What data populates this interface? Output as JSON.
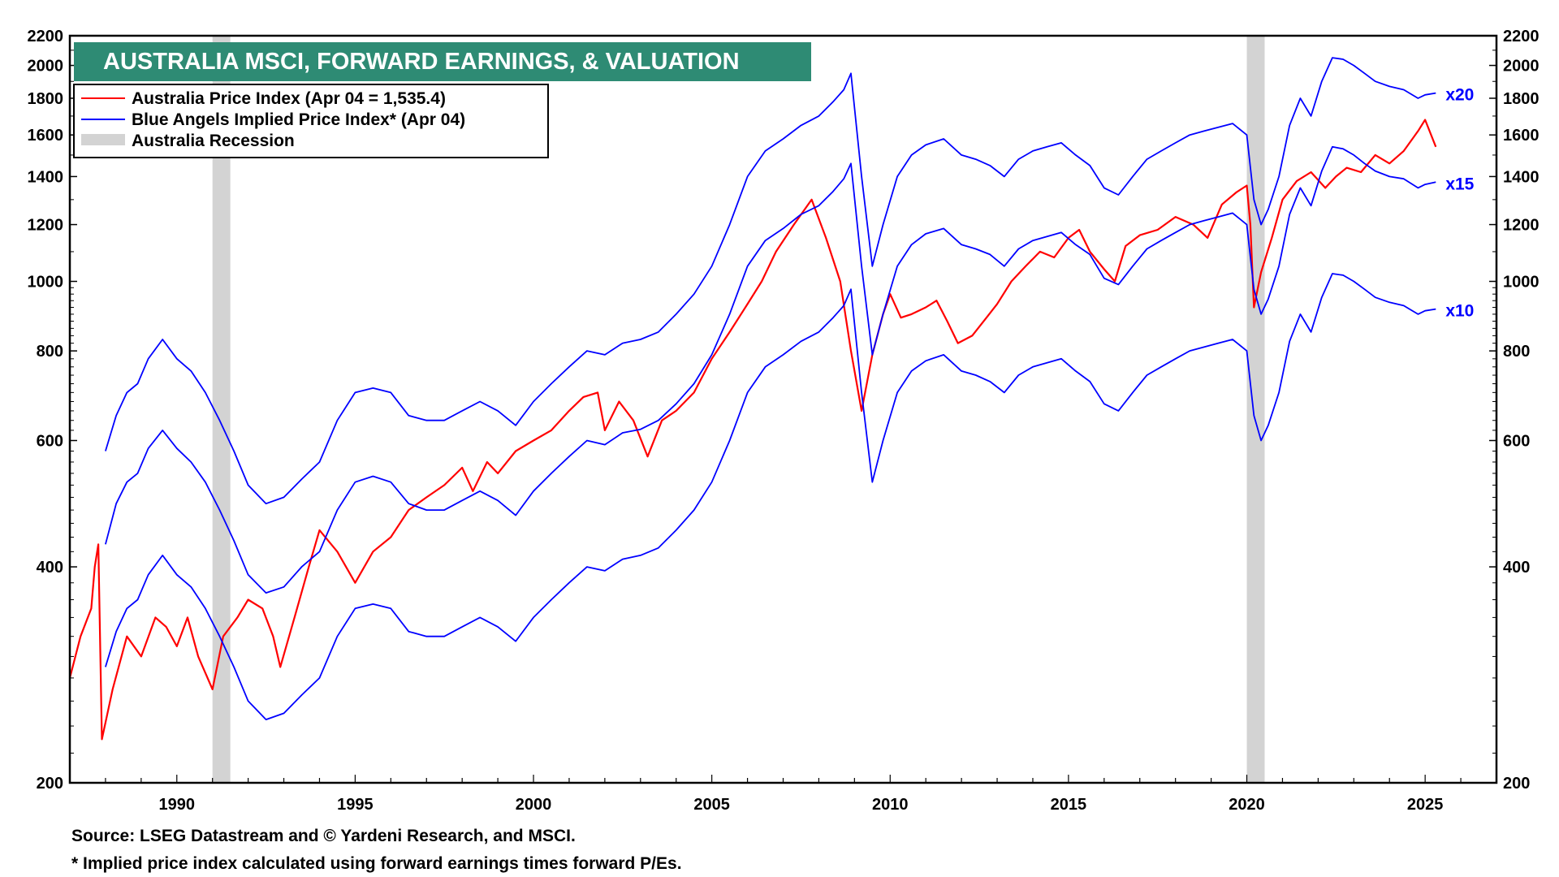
{
  "colors": {
    "price": "#ff0000",
    "implied": "#0000ff",
    "recession": "#d3d3d3",
    "title_bg": "#2e8b74"
  },
  "chart_data": {
    "type": "line",
    "title": "AUSTRALIA MSCI, FORWARD EARNINGS, & VALUATION",
    "y_scale": "log",
    "ylim": [
      200,
      2200
    ],
    "xlim": [
      1987.0,
      2027.0
    ],
    "y_ticks": [
      "200",
      "400",
      "600",
      "800",
      "1000",
      "1200",
      "1400",
      "1600",
      "1800",
      "2000",
      "2200"
    ],
    "y_tick_values": [
      200,
      400,
      600,
      800,
      1000,
      1200,
      1400,
      1600,
      1800,
      2000,
      2200
    ],
    "x_ticks": [
      "1990",
      "1995",
      "2000",
      "2005",
      "2010",
      "2015",
      "2020",
      "2025"
    ],
    "x_tick_values": [
      1990,
      1995,
      2000,
      2005,
      2010,
      2015,
      2020,
      2025
    ],
    "legend": [
      {
        "label": "Australia Price Index (Apr 04 = 1,535.4)",
        "kind": "line",
        "color": "#ff0000"
      },
      {
        "label": "Blue Angels Implied Price Index* (Apr 04)",
        "kind": "line",
        "color": "#0000ff"
      },
      {
        "label": "Australia Recession",
        "kind": "band",
        "color": "#d3d3d3"
      }
    ],
    "recessions": [
      [
        1991.0,
        1991.5
      ],
      [
        2020.0,
        2020.5
      ]
    ],
    "multiple_labels": [
      "x20",
      "x15",
      "x10"
    ],
    "series": [
      {
        "name": "Australia Price Index",
        "color": "#ff0000",
        "x": [
          1987.0,
          1987.3,
          1987.6,
          1987.7,
          1987.8,
          1987.9,
          1988.2,
          1988.6,
          1989.0,
          1989.4,
          1989.7,
          1990.0,
          1990.3,
          1990.6,
          1991.0,
          1991.3,
          1991.7,
          1992.0,
          1992.4,
          1992.7,
          1992.9,
          1993.3,
          1993.7,
          1994.0,
          1994.5,
          1995.0,
          1995.5,
          1996.0,
          1996.5,
          1997.0,
          1997.5,
          1998.0,
          1998.3,
          1998.7,
          1999.0,
          1999.5,
          2000.0,
          2000.5,
          2001.0,
          2001.4,
          2001.8,
          2002.0,
          2002.4,
          2002.8,
          2003.2,
          2003.6,
          2004.0,
          2004.5,
          2005.0,
          2005.5,
          2006.0,
          2006.4,
          2006.8,
          2007.3,
          2007.8,
          2008.2,
          2008.6,
          2008.9,
          2009.2,
          2009.5,
          2009.8,
          2010.0,
          2010.3,
          2010.6,
          2011.0,
          2011.3,
          2011.6,
          2011.9,
          2012.3,
          2012.7,
          2013.0,
          2013.4,
          2013.8,
          2014.2,
          2014.6,
          2015.0,
          2015.3,
          2015.6,
          2016.0,
          2016.3,
          2016.6,
          2017.0,
          2017.5,
          2018.0,
          2018.5,
          2018.9,
          2019.3,
          2019.7,
          2020.0,
          2020.1,
          2020.2,
          2020.4,
          2020.7,
          2021.0,
          2021.4,
          2021.8,
          2022.2,
          2022.5,
          2022.8,
          2023.2,
          2023.6,
          2024.0,
          2024.4,
          2024.8,
          2025.0,
          2025.3
        ],
        "values": [
          280,
          320,
          350,
          400,
          430,
          230,
          270,
          320,
          300,
          340,
          330,
          310,
          340,
          300,
          270,
          320,
          340,
          360,
          350,
          320,
          290,
          340,
          400,
          450,
          420,
          380,
          420,
          440,
          480,
          500,
          520,
          550,
          510,
          560,
          540,
          580,
          600,
          620,
          660,
          690,
          700,
          620,
          680,
          640,
          570,
          640,
          660,
          700,
          780,
          850,
          930,
          1000,
          1100,
          1200,
          1300,
          1150,
          1000,
          800,
          660,
          790,
          900,
          960,
          890,
          900,
          920,
          940,
          880,
          820,
          840,
          890,
          930,
          1000,
          1050,
          1100,
          1080,
          1150,
          1180,
          1100,
          1040,
          1000,
          1120,
          1160,
          1180,
          1230,
          1200,
          1150,
          1280,
          1330,
          1360,
          1200,
          920,
          1030,
          1150,
          1300,
          1380,
          1420,
          1350,
          1400,
          1440,
          1420,
          1500,
          1460,
          1520,
          1620,
          1680,
          1540
        ]
      },
      {
        "name": "Implied x20",
        "color": "#0000ff",
        "x": [
          1988.0,
          1988.3,
          1988.6,
          1988.9,
          1989.2,
          1989.6,
          1990.0,
          1990.4,
          1990.8,
          1991.2,
          1991.6,
          1992.0,
          1992.5,
          1993.0,
          1993.5,
          1994.0,
          1994.5,
          1995.0,
          1995.5,
          1996.0,
          1996.5,
          1997.0,
          1997.5,
          1998.0,
          1998.5,
          1999.0,
          1999.5,
          2000.0,
          2000.5,
          2001.0,
          2001.5,
          2002.0,
          2002.5,
          2003.0,
          2003.5,
          2004.0,
          2004.5,
          2005.0,
          2005.5,
          2006.0,
          2006.5,
          2007.0,
          2007.5,
          2008.0,
          2008.4,
          2008.7,
          2008.9,
          2009.2,
          2009.5,
          2009.8,
          2010.2,
          2010.6,
          2011.0,
          2011.5,
          2012.0,
          2012.4,
          2012.8,
          2013.2,
          2013.6,
          2014.0,
          2014.4,
          2014.8,
          2015.2,
          2015.6,
          2016.0,
          2016.4,
          2016.8,
          2017.2,
          2017.6,
          2018.0,
          2018.4,
          2018.8,
          2019.2,
          2019.6,
          2020.0,
          2020.2,
          2020.4,
          2020.6,
          2020.9,
          2021.2,
          2021.5,
          2021.8,
          2022.1,
          2022.4,
          2022.7,
          2023.0,
          2023.3,
          2023.6,
          2024.0,
          2024.4,
          2024.8,
          2025.0,
          2025.3
        ],
        "values": [
          580,
          650,
          700,
          720,
          780,
          830,
          780,
          750,
          700,
          640,
          580,
          520,
          490,
          500,
          530,
          560,
          640,
          700,
          710,
          700,
          650,
          640,
          640,
          660,
          680,
          660,
          630,
          680,
          720,
          760,
          800,
          790,
          820,
          830,
          850,
          900,
          960,
          1050,
          1200,
          1400,
          1520,
          1580,
          1650,
          1700,
          1780,
          1850,
          1950,
          1400,
          1050,
          1200,
          1400,
          1500,
          1550,
          1580,
          1500,
          1480,
          1450,
          1400,
          1480,
          1520,
          1540,
          1560,
          1500,
          1450,
          1350,
          1320,
          1400,
          1480,
          1520,
          1560,
          1600,
          1620,
          1640,
          1660,
          1600,
          1300,
          1200,
          1260,
          1400,
          1650,
          1800,
          1700,
          1900,
          2050,
          2040,
          2000,
          1950,
          1900,
          1870,
          1850,
          1800,
          1820,
          1830
        ]
      },
      {
        "name": "Implied x15",
        "color": "#0000ff",
        "x": [
          1988.0,
          1988.3,
          1988.6,
          1988.9,
          1989.2,
          1989.6,
          1990.0,
          1990.4,
          1990.8,
          1991.2,
          1991.6,
          1992.0,
          1992.5,
          1993.0,
          1993.5,
          1994.0,
          1994.5,
          1995.0,
          1995.5,
          1996.0,
          1996.5,
          1997.0,
          1997.5,
          1998.0,
          1998.5,
          1999.0,
          1999.5,
          2000.0,
          2000.5,
          2001.0,
          2001.5,
          2002.0,
          2002.5,
          2003.0,
          2003.5,
          2004.0,
          2004.5,
          2005.0,
          2005.5,
          2006.0,
          2006.5,
          2007.0,
          2007.5,
          2008.0,
          2008.4,
          2008.7,
          2008.9,
          2009.2,
          2009.5,
          2009.8,
          2010.2,
          2010.6,
          2011.0,
          2011.5,
          2012.0,
          2012.4,
          2012.8,
          2013.2,
          2013.6,
          2014.0,
          2014.4,
          2014.8,
          2015.2,
          2015.6,
          2016.0,
          2016.4,
          2016.8,
          2017.2,
          2017.6,
          2018.0,
          2018.4,
          2018.8,
          2019.2,
          2019.6,
          2020.0,
          2020.2,
          2020.4,
          2020.6,
          2020.9,
          2021.2,
          2021.5,
          2021.8,
          2022.1,
          2022.4,
          2022.7,
          2023.0,
          2023.3,
          2023.6,
          2024.0,
          2024.4,
          2024.8,
          2025.0,
          2025.3
        ],
        "values": [
          430,
          490,
          525,
          540,
          585,
          620,
          585,
          560,
          525,
          480,
          435,
          390,
          368,
          375,
          400,
          420,
          480,
          525,
          535,
          525,
          490,
          480,
          480,
          495,
          510,
          495,
          472,
          510,
          540,
          570,
          600,
          592,
          615,
          622,
          640,
          675,
          720,
          790,
          900,
          1050,
          1140,
          1185,
          1240,
          1275,
          1335,
          1390,
          1460,
          1050,
          790,
          900,
          1050,
          1125,
          1165,
          1185,
          1125,
          1110,
          1090,
          1050,
          1110,
          1140,
          1155,
          1170,
          1125,
          1090,
          1010,
          990,
          1050,
          1110,
          1140,
          1170,
          1200,
          1215,
          1230,
          1245,
          1200,
          975,
          900,
          945,
          1050,
          1240,
          1350,
          1275,
          1425,
          1540,
          1530,
          1500,
          1460,
          1425,
          1400,
          1390,
          1350,
          1365,
          1375
        ]
      },
      {
        "name": "Implied x10",
        "color": "#0000ff",
        "x": [
          1988.0,
          1988.3,
          1988.6,
          1988.9,
          1989.2,
          1989.6,
          1990.0,
          1990.4,
          1990.8,
          1991.2,
          1991.6,
          1992.0,
          1992.5,
          1993.0,
          1993.5,
          1994.0,
          1994.5,
          1995.0,
          1995.5,
          1996.0,
          1996.5,
          1997.0,
          1997.5,
          1998.0,
          1998.5,
          1999.0,
          1999.5,
          2000.0,
          2000.5,
          2001.0,
          2001.5,
          2002.0,
          2002.5,
          2003.0,
          2003.5,
          2004.0,
          2004.5,
          2005.0,
          2005.5,
          2006.0,
          2006.5,
          2007.0,
          2007.5,
          2008.0,
          2008.4,
          2008.7,
          2008.9,
          2009.2,
          2009.5,
          2009.8,
          2010.2,
          2010.6,
          2011.0,
          2011.5,
          2012.0,
          2012.4,
          2012.8,
          2013.2,
          2013.6,
          2014.0,
          2014.4,
          2014.8,
          2015.2,
          2015.6,
          2016.0,
          2016.4,
          2016.8,
          2017.2,
          2017.6,
          2018.0,
          2018.4,
          2018.8,
          2019.2,
          2019.6,
          2020.0,
          2020.2,
          2020.4,
          2020.6,
          2020.9,
          2021.2,
          2021.5,
          2021.8,
          2022.1,
          2022.4,
          2022.7,
          2023.0,
          2023.3,
          2023.6,
          2024.0,
          2024.4,
          2024.8,
          2025.0,
          2025.3
        ],
        "values": [
          290,
          325,
          350,
          360,
          390,
          415,
          390,
          375,
          350,
          320,
          290,
          260,
          245,
          250,
          265,
          280,
          320,
          350,
          355,
          350,
          325,
          320,
          320,
          330,
          340,
          330,
          315,
          340,
          360,
          380,
          400,
          395,
          410,
          415,
          425,
          450,
          480,
          525,
          600,
          700,
          760,
          790,
          825,
          850,
          890,
          925,
          975,
          700,
          525,
          600,
          700,
          750,
          775,
          790,
          750,
          740,
          725,
          700,
          740,
          760,
          770,
          780,
          750,
          725,
          675,
          660,
          700,
          740,
          760,
          780,
          800,
          810,
          820,
          830,
          800,
          650,
          600,
          630,
          700,
          825,
          900,
          850,
          950,
          1025,
          1020,
          1000,
          975,
          950,
          935,
          925,
          900,
          910,
          915
        ]
      }
    ]
  },
  "footer": {
    "source": "Source: LSEG Datastream and © Yardeni Research, and MSCI.",
    "note": "* Implied price index calculated using forward earnings times forward P/Es."
  }
}
